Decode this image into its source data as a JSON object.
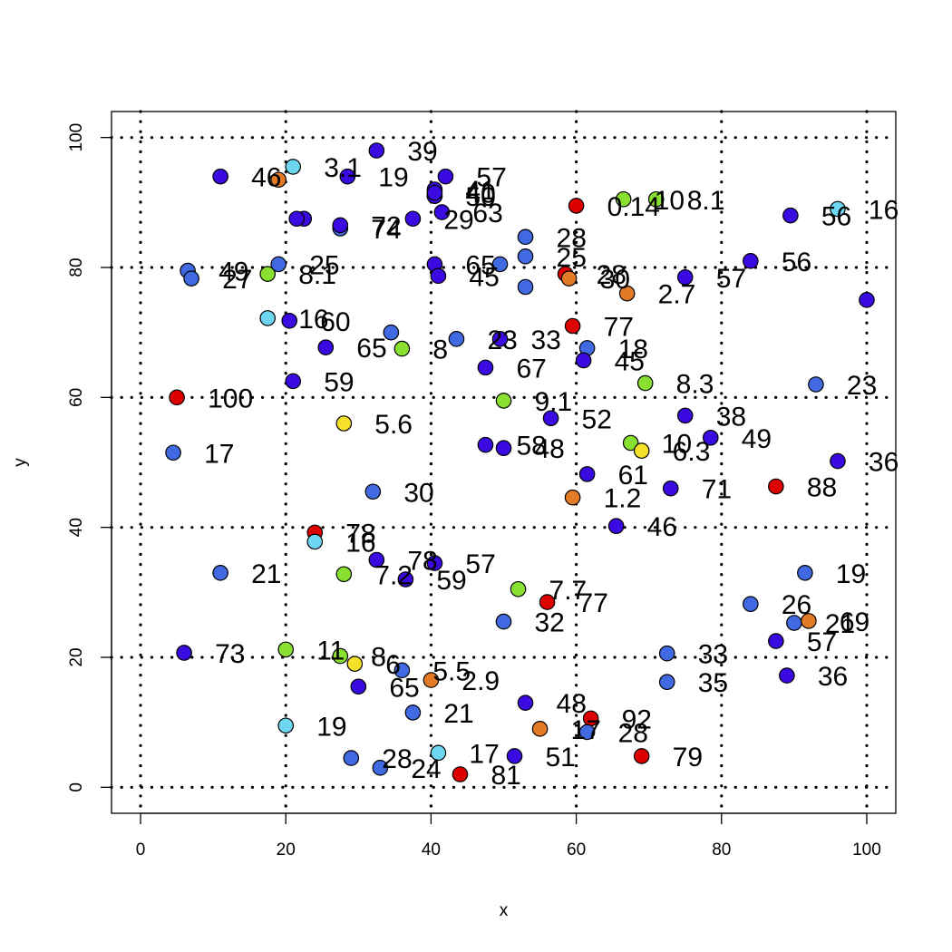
{
  "chart_data": {
    "type": "scatter",
    "title": "",
    "xlabel": "x",
    "ylabel": "y",
    "xlim": [
      -4,
      104
    ],
    "ylim": [
      -4,
      104
    ],
    "x_ticks": [
      "0",
      "20",
      "40",
      "60",
      "80",
      "100"
    ],
    "y_ticks": [
      "0",
      "20",
      "40",
      "60",
      "80",
      "100"
    ],
    "grid": "dotted",
    "colors": {
      "blue": "#4169e1",
      "violet": "#3a0ae0",
      "cyan": "#6fd6f2",
      "green": "#8ae030",
      "yellow": "#f5e02a",
      "orange": "#e37a26",
      "red": "#dd0000"
    },
    "points": [
      {
        "x": 11,
        "y": 94,
        "label": "46",
        "color": "violet"
      },
      {
        "x": 21,
        "y": 95.5,
        "label": "3.1",
        "color": "cyan"
      },
      {
        "x": 19,
        "y": 93.5,
        "label": "",
        "color": "orange"
      },
      {
        "x": 28.5,
        "y": 94,
        "label": "19",
        "color": "violet"
      },
      {
        "x": 32.5,
        "y": 98,
        "label": "39",
        "color": "violet"
      },
      {
        "x": 40.5,
        "y": 92,
        "label": "41",
        "color": "violet"
      },
      {
        "x": 40.5,
        "y": 91,
        "label": "",
        "color": "violet"
      },
      {
        "x": 42,
        "y": 94,
        "label": "57",
        "color": "violet"
      },
      {
        "x": 22.5,
        "y": 87.5,
        "label": "",
        "color": "violet"
      },
      {
        "x": 21.5,
        "y": 87.5,
        "label": "",
        "color": "violet"
      },
      {
        "x": 27.5,
        "y": 86,
        "label": "74",
        "color": "blue"
      },
      {
        "x": 27.5,
        "y": 86.5,
        "label": "72",
        "color": "violet"
      },
      {
        "x": 37.5,
        "y": 87.5,
        "label": "29",
        "color": "violet"
      },
      {
        "x": 41.5,
        "y": 88.5,
        "label": "63",
        "color": "violet"
      },
      {
        "x": 40.5,
        "y": 91,
        "label": "50",
        "color": "violet"
      },
      {
        "x": 40.5,
        "y": 91.5,
        "label": "40",
        "color": "violet"
      },
      {
        "x": 60,
        "y": 89.5,
        "label": "0.14",
        "color": "red"
      },
      {
        "x": 66.5,
        "y": 90.5,
        "label": "10",
        "color": "green"
      },
      {
        "x": 71,
        "y": 90.5,
        "label": "8.1",
        "color": "green"
      },
      {
        "x": 96,
        "y": 89,
        "label": "16",
        "color": "cyan"
      },
      {
        "x": 89.5,
        "y": 88,
        "label": "56",
        "color": "violet"
      },
      {
        "x": 6.5,
        "y": 79.5,
        "label": "49",
        "color": "blue"
      },
      {
        "x": 7,
        "y": 78.3,
        "label": "27",
        "color": "blue"
      },
      {
        "x": 17.5,
        "y": 79,
        "label": "8.1",
        "color": "green"
      },
      {
        "x": 19,
        "y": 80.5,
        "label": "25",
        "color": "blue"
      },
      {
        "x": 40.5,
        "y": 80.5,
        "label": "65",
        "color": "violet"
      },
      {
        "x": 41,
        "y": 78.7,
        "label": "45",
        "color": "violet"
      },
      {
        "x": 49.5,
        "y": 80.5,
        "label": "",
        "color": "blue"
      },
      {
        "x": 53,
        "y": 84.7,
        "label": "28",
        "color": "blue"
      },
      {
        "x": 53,
        "y": 81.7,
        "label": "25",
        "color": "blue"
      },
      {
        "x": 53,
        "y": 77,
        "label": "",
        "color": "blue"
      },
      {
        "x": 58.5,
        "y": 79,
        "label": "28",
        "color": "red"
      },
      {
        "x": 59,
        "y": 78.3,
        "label": "30",
        "color": "orange"
      },
      {
        "x": 67,
        "y": 76,
        "label": "2.7",
        "color": "orange"
      },
      {
        "x": 75,
        "y": 78.5,
        "label": "57",
        "color": "violet"
      },
      {
        "x": 84,
        "y": 81,
        "label": "56",
        "color": "violet"
      },
      {
        "x": 100,
        "y": 75,
        "label": "",
        "color": "violet"
      },
      {
        "x": 17.5,
        "y": 72.2,
        "label": "16",
        "color": "cyan"
      },
      {
        "x": 20.5,
        "y": 71.8,
        "label": "60",
        "color": "violet"
      },
      {
        "x": 25.5,
        "y": 67.7,
        "label": "65",
        "color": "violet"
      },
      {
        "x": 34.5,
        "y": 70,
        "label": "",
        "color": "blue"
      },
      {
        "x": 36,
        "y": 67.5,
        "label": "8",
        "color": "green"
      },
      {
        "x": 43.5,
        "y": 69,
        "label": "23",
        "color": "blue"
      },
      {
        "x": 47.5,
        "y": 64.6,
        "label": "67",
        "color": "violet"
      },
      {
        "x": 49.5,
        "y": 69,
        "label": "33",
        "color": "violet"
      },
      {
        "x": 59.5,
        "y": 71,
        "label": "77",
        "color": "red"
      },
      {
        "x": 61.5,
        "y": 67.6,
        "label": "18",
        "color": "blue"
      },
      {
        "x": 61,
        "y": 65.7,
        "label": "45",
        "color": "violet"
      },
      {
        "x": 69.5,
        "y": 62.2,
        "label": "8.3",
        "color": "green"
      },
      {
        "x": 93,
        "y": 62,
        "label": "23",
        "color": "blue"
      },
      {
        "x": 21,
        "y": 62.5,
        "label": "59",
        "color": "violet"
      },
      {
        "x": 5,
        "y": 60,
        "label": "100",
        "color": "red"
      },
      {
        "x": 50,
        "y": 59.5,
        "label": "9.1",
        "color": "green"
      },
      {
        "x": 56.5,
        "y": 56.8,
        "label": "52",
        "color": "violet"
      },
      {
        "x": 28,
        "y": 56,
        "label": "5.6",
        "color": "yellow"
      },
      {
        "x": 75,
        "y": 57.2,
        "label": "38",
        "color": "violet"
      },
      {
        "x": 78.5,
        "y": 53.8,
        "label": "49",
        "color": "violet"
      },
      {
        "x": 4.5,
        "y": 51.5,
        "label": "17",
        "color": "blue"
      },
      {
        "x": 47.5,
        "y": 52.7,
        "label": "58",
        "color": "violet"
      },
      {
        "x": 50,
        "y": 52.2,
        "label": "48",
        "color": "violet"
      },
      {
        "x": 67.5,
        "y": 53,
        "label": "10",
        "color": "green"
      },
      {
        "x": 69,
        "y": 51.8,
        "label": "6.3",
        "color": "yellow"
      },
      {
        "x": 96,
        "y": 50.2,
        "label": "36",
        "color": "violet"
      },
      {
        "x": 61.5,
        "y": 48.2,
        "label": "61",
        "color": "violet"
      },
      {
        "x": 73,
        "y": 46,
        "label": "71",
        "color": "violet"
      },
      {
        "x": 87.5,
        "y": 46.3,
        "label": "88",
        "color": "red"
      },
      {
        "x": 32,
        "y": 45.5,
        "label": "30",
        "color": "blue"
      },
      {
        "x": 59.5,
        "y": 44.6,
        "label": "1.2",
        "color": "orange"
      },
      {
        "x": 65.5,
        "y": 40.2,
        "label": "46",
        "color": "violet"
      },
      {
        "x": 24,
        "y": 39.2,
        "label": "78",
        "color": "red"
      },
      {
        "x": 24,
        "y": 37.8,
        "label": "16",
        "color": "cyan"
      },
      {
        "x": 32.5,
        "y": 35,
        "label": "78",
        "color": "violet"
      },
      {
        "x": 40.5,
        "y": 34.5,
        "label": "57",
        "color": "violet"
      },
      {
        "x": 11,
        "y": 33,
        "label": "21",
        "color": "blue"
      },
      {
        "x": 28,
        "y": 32.8,
        "label": "7.2",
        "color": "green"
      },
      {
        "x": 36.5,
        "y": 32,
        "label": "59",
        "color": "violet"
      },
      {
        "x": 52,
        "y": 30.5,
        "label": "7.7",
        "color": "green"
      },
      {
        "x": 56,
        "y": 28.5,
        "label": "77",
        "color": "red"
      },
      {
        "x": 91.5,
        "y": 33,
        "label": "19",
        "color": "blue"
      },
      {
        "x": 84,
        "y": 28.2,
        "label": "26",
        "color": "blue"
      },
      {
        "x": 50,
        "y": 25.5,
        "label": "32",
        "color": "blue"
      },
      {
        "x": 90,
        "y": 25.3,
        "label": "21",
        "color": "blue"
      },
      {
        "x": 92,
        "y": 25.6,
        "label": "69",
        "color": "orange"
      },
      {
        "x": 87.5,
        "y": 22.5,
        "label": "57",
        "color": "violet"
      },
      {
        "x": 6,
        "y": 20.7,
        "label": "73",
        "color": "violet"
      },
      {
        "x": 20,
        "y": 21.2,
        "label": "11",
        "color": "green"
      },
      {
        "x": 27.5,
        "y": 20.2,
        "label": "8",
        "color": "green"
      },
      {
        "x": 29.5,
        "y": 19,
        "label": "6",
        "color": "yellow"
      },
      {
        "x": 72.5,
        "y": 20.6,
        "label": "33",
        "color": "blue"
      },
      {
        "x": 36,
        "y": 18,
        "label": "5.5",
        "color": "blue"
      },
      {
        "x": 40,
        "y": 16.5,
        "label": "2.9",
        "color": "orange"
      },
      {
        "x": 30,
        "y": 15.5,
        "label": "65",
        "color": "violet"
      },
      {
        "x": 72.5,
        "y": 16.2,
        "label": "35",
        "color": "blue"
      },
      {
        "x": 89,
        "y": 17.2,
        "label": "36",
        "color": "violet"
      },
      {
        "x": 53,
        "y": 13,
        "label": "48",
        "color": "violet"
      },
      {
        "x": 37.5,
        "y": 11.5,
        "label": "21",
        "color": "blue"
      },
      {
        "x": 62,
        "y": 10.6,
        "label": "92",
        "color": "red"
      },
      {
        "x": 20,
        "y": 9.5,
        "label": "19",
        "color": "cyan"
      },
      {
        "x": 55,
        "y": 9,
        "label": "17",
        "color": "orange"
      },
      {
        "x": 61.5,
        "y": 8.5,
        "label": "28",
        "color": "blue"
      },
      {
        "x": 29,
        "y": 4.5,
        "label": "28",
        "color": "blue"
      },
      {
        "x": 41,
        "y": 5.3,
        "label": "17",
        "color": "cyan"
      },
      {
        "x": 51.5,
        "y": 4.8,
        "label": "51",
        "color": "violet"
      },
      {
        "x": 69,
        "y": 4.8,
        "label": "79",
        "color": "red"
      },
      {
        "x": 33,
        "y": 3,
        "label": "24",
        "color": "blue"
      },
      {
        "x": 44,
        "y": 2,
        "label": "81",
        "color": "red"
      }
    ]
  }
}
